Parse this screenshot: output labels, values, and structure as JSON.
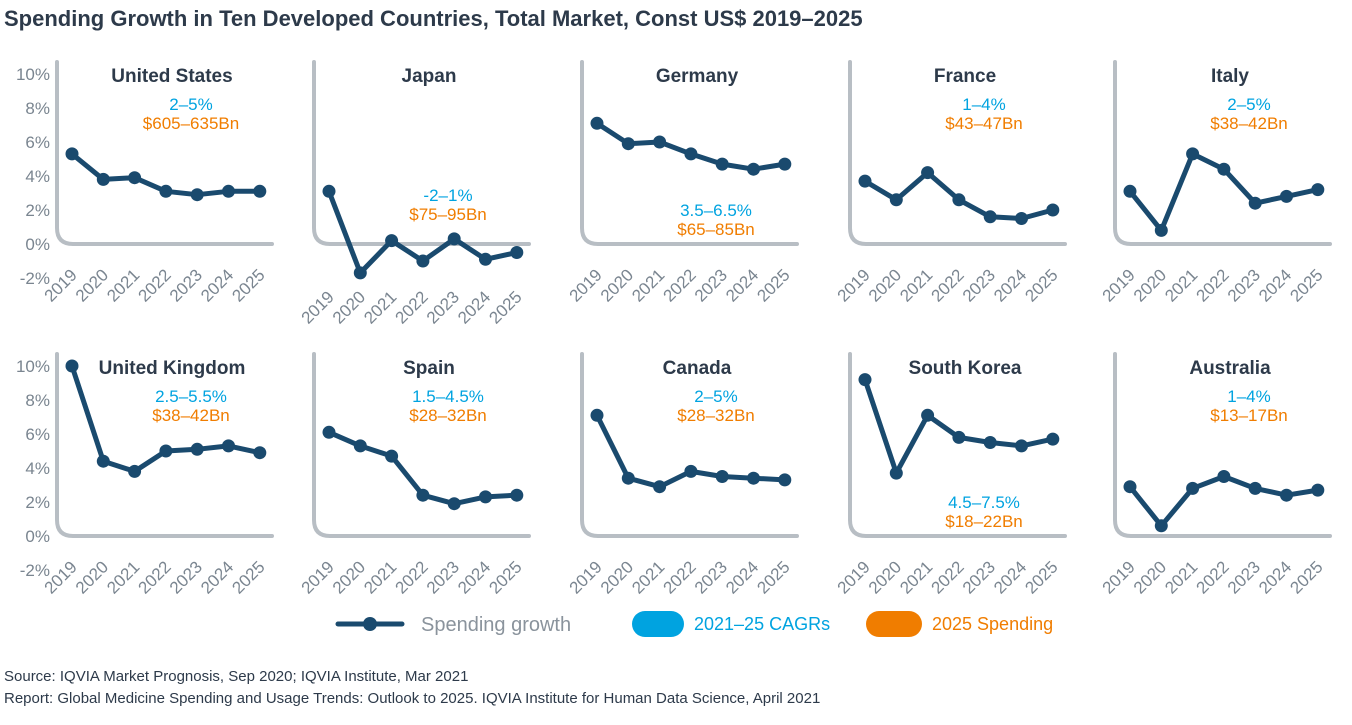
{
  "title": "Spending Growth in Ten Developed Countries, Total Market, Const US$ 2019–2025",
  "colors": {
    "line": "#1a4a6e",
    "axis": "#b8bec4",
    "tick_text": "#7a8590",
    "cagr": "#00a3e0",
    "spending": "#f07d00",
    "panel_title": "#2d3a4a"
  },
  "legend": {
    "spending_growth": "Spending growth",
    "cagr": "2021–25 CAGRs",
    "spending": "2025 Spending"
  },
  "source": {
    "line1": "Source: IQVIA Market Prognosis, Sep 2020; IQVIA Institute, Mar 2021",
    "line2": "Report: Global Medicine Spending and Usage Trends: Outlook to 2025. IQVIA Institute for Human Data Science, April 2021"
  },
  "chart_data": {
    "type": "line",
    "series_name": "Spending growth",
    "x": [
      "2019",
      "2020",
      "2021",
      "2022",
      "2023",
      "2024",
      "2025"
    ],
    "y_tick_labels": [
      "10%",
      "8%",
      "6%",
      "4%",
      "2%",
      "0%",
      "-2%"
    ],
    "ylim": [
      -2,
      10
    ],
    "panels": [
      {
        "id": "united-states",
        "title": "United States",
        "cagr": "2–5%",
        "spending": "$605–635Bn",
        "label_pos": "top",
        "values": [
          5.3,
          3.8,
          3.9,
          3.1,
          2.9,
          3.1,
          3.1
        ]
      },
      {
        "id": "japan",
        "title": "Japan",
        "cagr": "-2–1%",
        "spending": "$75–95Bn",
        "label_pos": "middle",
        "values": [
          3.1,
          -1.7,
          0.2,
          -1.0,
          0.3,
          -0.9,
          -0.5
        ]
      },
      {
        "id": "germany",
        "title": "Germany",
        "cagr": "3.5–6.5%",
        "spending": "$65–85Bn",
        "label_pos": "bottom",
        "values": [
          7.1,
          5.9,
          6.0,
          5.3,
          4.7,
          4.4,
          4.7
        ]
      },
      {
        "id": "france",
        "title": "France",
        "cagr": "1–4%",
        "spending": "$43–47Bn",
        "label_pos": "top",
        "values": [
          3.7,
          2.6,
          4.2,
          2.6,
          1.6,
          1.5,
          2.0
        ]
      },
      {
        "id": "italy",
        "title": "Italy",
        "cagr": "2–5%",
        "spending": "$38–42Bn",
        "label_pos": "top",
        "values": [
          3.1,
          0.8,
          5.3,
          4.4,
          2.4,
          2.8,
          3.2
        ]
      },
      {
        "id": "united-kingdom",
        "title": "United Kingdom",
        "cagr": "2.5–5.5%",
        "spending": "$38–42Bn",
        "label_pos": "top",
        "values": [
          10.0,
          4.4,
          3.8,
          5.0,
          5.1,
          5.3,
          4.9
        ]
      },
      {
        "id": "spain",
        "title": "Spain",
        "cagr": "1.5–4.5%",
        "spending": "$28–32Bn",
        "label_pos": "top",
        "values": [
          6.1,
          5.3,
          4.7,
          2.4,
          1.9,
          2.3,
          2.4
        ]
      },
      {
        "id": "canada",
        "title": "Canada",
        "cagr": "2–5%",
        "spending": "$28–32Bn",
        "label_pos": "top",
        "values": [
          7.1,
          3.4,
          2.9,
          3.8,
          3.5,
          3.4,
          3.3
        ]
      },
      {
        "id": "south-korea",
        "title": "South Korea",
        "cagr": "4.5–7.5%",
        "spending": "$18–22Bn",
        "label_pos": "bottom",
        "values": [
          9.2,
          3.7,
          7.1,
          5.8,
          5.5,
          5.3,
          5.7
        ]
      },
      {
        "id": "australia",
        "title": "Australia",
        "cagr": "1–4%",
        "spending": "$13–17Bn",
        "label_pos": "top",
        "values": [
          2.9,
          0.6,
          2.8,
          3.5,
          2.8,
          2.4,
          2.7
        ]
      }
    ]
  }
}
